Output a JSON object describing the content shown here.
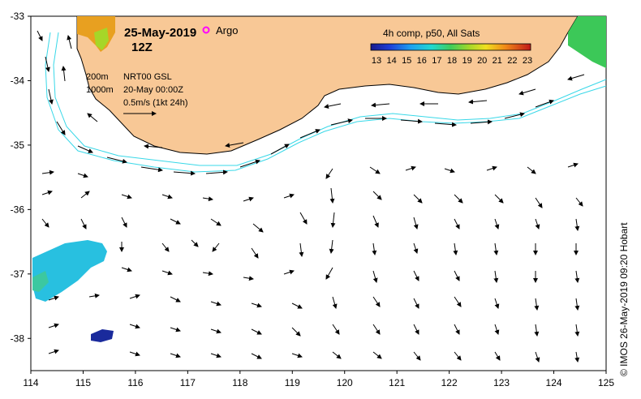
{
  "title": {
    "date": "25-May-2019",
    "time": "12Z",
    "argo_label": "Argo"
  },
  "legend": {
    "composite_label": "4h comp, p50, All Sats",
    "sst_ticks": [
      "13",
      "14",
      "15",
      "16",
      "17",
      "18",
      "19",
      "20",
      "21",
      "22",
      "23"
    ],
    "sst_min": 13,
    "sst_max": 23,
    "colors": {
      "land": "#f8c896",
      "argo_marker": "#ff00ff",
      "contour": "#39d8e8"
    }
  },
  "info": {
    "depth_200": "200m",
    "depth_1000": "1000m",
    "model": "NRT00 GSL",
    "model_time": "20-May 00:00Z",
    "scale": "0.5m/s (1kt 24h)"
  },
  "axes": {
    "lon_ticks": [
      "114",
      "115",
      "116",
      "117",
      "118",
      "119",
      "120",
      "121",
      "122",
      "123",
      "124",
      "125"
    ],
    "lat_ticks": [
      "-33",
      "-34",
      "-35",
      "-36",
      "-37",
      "-38"
    ],
    "lon_range": [
      114,
      125
    ],
    "lat_range": [
      -38.5,
      -33
    ]
  },
  "credit": "© IMOS 26-May-2019 09:20 Hobart"
}
